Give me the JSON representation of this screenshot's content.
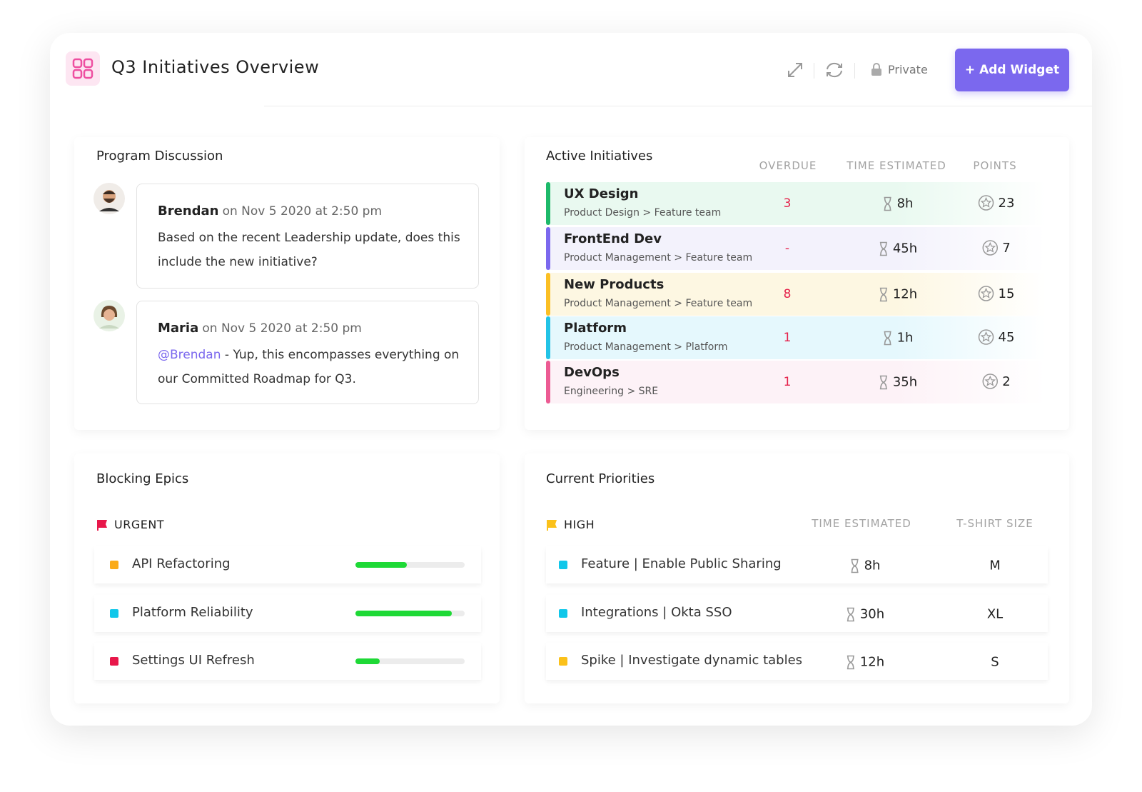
{
  "header": {
    "title": "Q3 Initiatives Overview",
    "private": "Private",
    "add_widget": "+ Add Widget"
  },
  "program_discussion": {
    "title": "Program Discussion",
    "comments": [
      {
        "author": "Brendan",
        "timestamp": "on Nov 5 2020 at 2:50 pm",
        "text": "Based on the recent Leadership update, does this include the new initiative?"
      },
      {
        "author": "Maria",
        "timestamp": "on Nov 5 2020 at 2:50 pm",
        "mention": "@Brendan",
        "text": "- Yup, this encompasses everything on our Committed Roadmap for Q3."
      }
    ]
  },
  "active_initiatives": {
    "title": "Active Initiatives",
    "columns": [
      "OVERDUE",
      "TIME ESTIMATED",
      "POINTS"
    ],
    "rows": [
      {
        "name": "UX Design",
        "path": "Product Design > Feature team",
        "overdue": 3,
        "time": "8h",
        "points": 23,
        "color": "#1db96a",
        "background": "#e9f9f0"
      },
      {
        "name": "FrontEnd Dev",
        "path": "Product Management > Feature team",
        "overdue": "-",
        "time": "45h",
        "points": 7,
        "color": "#7b68ee",
        "background": "#f3f2fc"
      },
      {
        "name": "New Products",
        "path": "Product Management > Feature team",
        "overdue": 8,
        "time": "12h",
        "points": 15,
        "color": "#fbbf24",
        "background": "#fdf7e2"
      },
      {
        "name": "Platform",
        "path": "Product Management > Platform",
        "overdue": 1,
        "time": "1h",
        "points": 45,
        "color": "#22c3e6",
        "background": "#e5f8fd"
      },
      {
        "name": "DevOps",
        "path": "Engineering > SRE",
        "overdue": 1,
        "time": "35h",
        "points": 2,
        "color": "#ec5b93",
        "background": "#fdf2f7"
      }
    ]
  },
  "blocking_epics": {
    "title": "Blocking Epics",
    "group": "URGENT",
    "items": [
      {
        "name": "API Refactoring",
        "color": "#fbab18",
        "progress": 47
      },
      {
        "name": "Platform Reliability",
        "color": "#10c7ea",
        "progress": 88
      },
      {
        "name": "Settings UI Refresh",
        "color": "#e8174a",
        "progress": 22
      }
    ]
  },
  "current_priorities": {
    "title": "Current Priorities",
    "group": "HIGH",
    "columns": [
      "TIME ESTIMATED",
      "T-SHIRT SIZE"
    ],
    "rows": [
      {
        "name": "Feature | Enable Public Sharing",
        "color": "#10c7ea",
        "time": "8h",
        "size": "M"
      },
      {
        "name": "Integrations | Okta SSO",
        "color": "#10c7ea",
        "time": "30h",
        "size": "XL"
      },
      {
        "name": "Spike | Investigate dynamic tables",
        "color": "#fbc11a",
        "time": "12h",
        "size": "S"
      }
    ]
  }
}
